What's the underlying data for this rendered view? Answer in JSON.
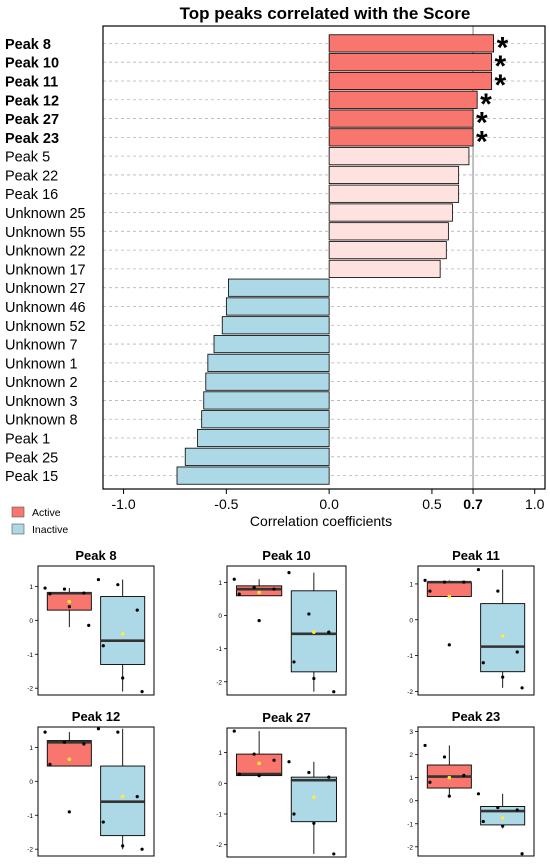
{
  "chart_data": [
    {
      "type": "bar",
      "orientation": "horizontal",
      "title": "Top peaks correlated with the Score",
      "xlabel": "Correlation coefficients",
      "ylabel": "",
      "xlim": [
        -1.1,
        1.05
      ],
      "xticks": [
        {
          "value": -1.0,
          "label": "-1.0"
        },
        {
          "value": -0.5,
          "label": "-0.5"
        },
        {
          "value": 0.0,
          "label": "0.0"
        },
        {
          "value": 0.5,
          "label": "0.5"
        },
        {
          "value": 0.7,
          "label": "0.7",
          "bold": true
        },
        {
          "value": 1.0,
          "label": "1.0"
        }
      ],
      "reference_line": 0.7,
      "grid": "dashed horizontal",
      "legend": {
        "position": "bottom-left",
        "entries": [
          {
            "label": "Active",
            "color": "#f8766d"
          },
          {
            "label": "Inactive",
            "color": "#add8e6"
          }
        ]
      },
      "colors": {
        "significant": "#f8766d",
        "positive": "#fde2df",
        "negative": "#add8e6"
      },
      "significance_marker": "*",
      "categories": [
        "Peak 8",
        "Peak 10",
        "Peak 11",
        "Peak 12",
        "Peak 27",
        "Peak 23",
        "Peak 5",
        "Peak 22",
        "Peak 16",
        "Unknown 25",
        "Unknown 55",
        "Unknown 22",
        "Unknown 17",
        "Unknown 27",
        "Unknown 46",
        "Unknown 52",
        "Unknown 7",
        "Unknown 1",
        "Unknown 2",
        "Unknown 3",
        "Unknown 8",
        "Peak 1",
        "Peak 25",
        "Peak 15"
      ],
      "values": [
        0.8,
        0.79,
        0.79,
        0.72,
        0.7,
        0.7,
        0.68,
        0.63,
        0.63,
        0.6,
        0.58,
        0.57,
        0.54,
        -0.49,
        -0.5,
        -0.52,
        -0.56,
        -0.59,
        -0.6,
        -0.61,
        -0.62,
        -0.64,
        -0.7,
        -0.74
      ],
      "significant": [
        true,
        true,
        true,
        true,
        true,
        true,
        false,
        false,
        false,
        false,
        false,
        false,
        false,
        false,
        false,
        false,
        false,
        false,
        false,
        false,
        false,
        false,
        false,
        false
      ]
    },
    {
      "type": "boxplot",
      "title": "Peak 8",
      "ylim": [
        -2.2,
        1.6
      ],
      "yticks": [
        "-2",
        "-1",
        "0",
        "1"
      ],
      "groups": [
        {
          "name": "Active",
          "q1": 0.3,
          "median": 0.8,
          "q3": 0.82,
          "whisker_low": -0.2,
          "whisker_high": 0.95,
          "mean": 0.55,
          "points": [
            0.95,
            0.92,
            0.8,
            0.78,
            0.4,
            -0.15
          ]
        },
        {
          "name": "Inactive",
          "q1": -1.3,
          "median": -0.6,
          "q3": 0.7,
          "whisker_low": -2.1,
          "whisker_high": 1.2,
          "mean": -0.4,
          "points": [
            1.2,
            1.05,
            0.3,
            -0.75,
            -1.7,
            -2.1
          ]
        }
      ]
    },
    {
      "type": "boxplot",
      "title": "Peak 10",
      "ylim": [
        -2.4,
        1.5
      ],
      "yticks": [
        "-2",
        "-1",
        "0",
        "1"
      ],
      "groups": [
        {
          "name": "Active",
          "q1": 0.6,
          "median": 0.8,
          "q3": 0.9,
          "whisker_low": 0.6,
          "whisker_high": 1.1,
          "mean": 0.7,
          "points": [
            1.1,
            0.85,
            0.8,
            0.65,
            -0.15
          ]
        },
        {
          "name": "Inactive",
          "q1": -1.7,
          "median": -0.55,
          "q3": 0.75,
          "whisker_low": -2.3,
          "whisker_high": 1.3,
          "mean": -0.5,
          "points": [
            1.3,
            0.05,
            -0.5,
            -1.4,
            -1.9,
            -2.3
          ]
        }
      ]
    },
    {
      "type": "boxplot",
      "title": "Peak 11",
      "ylim": [
        -2.1,
        1.5
      ],
      "yticks": [
        "-2",
        "-1",
        "0",
        "1"
      ],
      "groups": [
        {
          "name": "Active",
          "q1": 0.65,
          "median": 1.05,
          "q3": 1.05,
          "whisker_low": 0.65,
          "whisker_high": 1.1,
          "mean": 0.65,
          "points": [
            1.1,
            1.05,
            1.05,
            0.8,
            -0.7
          ]
        },
        {
          "name": "Inactive",
          "q1": -1.45,
          "median": -0.75,
          "q3": 0.45,
          "whisker_low": -1.9,
          "whisker_high": 1.4,
          "mean": -0.45,
          "points": [
            1.4,
            0.8,
            -0.9,
            -1.2,
            -1.6,
            -1.9
          ]
        }
      ]
    },
    {
      "type": "boxplot",
      "title": "Peak 12",
      "ylim": [
        -2.2,
        1.6
      ],
      "yticks": [
        "-2",
        "-1",
        "0",
        "1"
      ],
      "groups": [
        {
          "name": "Active",
          "q1": 0.45,
          "median": 1.15,
          "q3": 1.2,
          "whisker_low": 0.45,
          "whisker_high": 1.45,
          "mean": 0.65,
          "points": [
            1.45,
            1.15,
            1.1,
            0.5,
            -0.9
          ]
        },
        {
          "name": "Inactive",
          "q1": -1.6,
          "median": -0.6,
          "q3": 0.45,
          "whisker_low": -2.0,
          "whisker_high": 1.55,
          "mean": -0.45,
          "points": [
            1.55,
            1.45,
            -0.45,
            -1.2,
            -1.9,
            -2.0
          ]
        }
      ]
    },
    {
      "type": "boxplot",
      "title": "Peak 27",
      "ylim": [
        -2.4,
        1.8
      ],
      "yticks": [
        "-2",
        "-1",
        "0",
        "1"
      ],
      "groups": [
        {
          "name": "Active",
          "q1": 0.25,
          "median": 0.3,
          "q3": 0.95,
          "whisker_low": 0.2,
          "whisker_high": 1.7,
          "mean": 0.65,
          "points": [
            1.7,
            0.95,
            0.75,
            0.3,
            0.25
          ]
        },
        {
          "name": "Inactive",
          "q1": -1.25,
          "median": 0.1,
          "q3": 0.2,
          "whisker_low": -2.3,
          "whisker_high": 0.7,
          "mean": -0.45,
          "points": [
            0.7,
            0.35,
            0.2,
            -1.0,
            -1.3,
            -2.3
          ]
        }
      ]
    },
    {
      "type": "boxplot",
      "title": "Peak 23",
      "ylim": [
        -2.4,
        3.2
      ],
      "yticks": [
        "-2",
        "-1",
        "0",
        "1",
        "2",
        "3"
      ],
      "groups": [
        {
          "name": "Active",
          "q1": 0.55,
          "median": 1.05,
          "q3": 1.55,
          "whisker_low": 0.2,
          "whisker_high": 2.4,
          "mean": 1.0,
          "points": [
            2.4,
            1.9,
            1.1,
            0.8,
            0.2
          ]
        },
        {
          "name": "Inactive",
          "q1": -1.05,
          "median": -0.45,
          "q3": -0.25,
          "whisker_low": -1.2,
          "whisker_high": 0.3,
          "mean": -0.75,
          "points": [
            0.3,
            -0.3,
            -0.4,
            -0.9,
            -1.1,
            -2.3
          ]
        }
      ]
    }
  ]
}
